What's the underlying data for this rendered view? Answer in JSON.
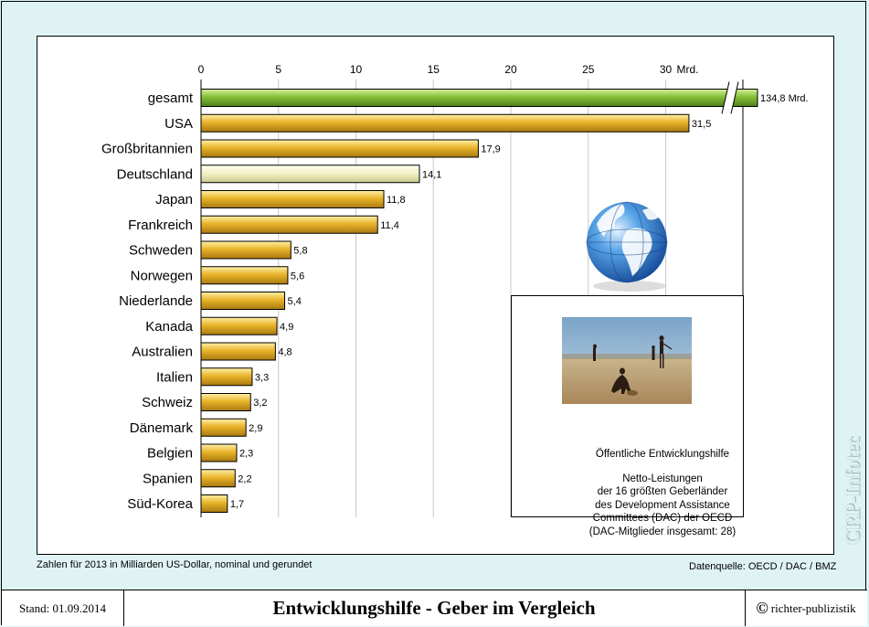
{
  "chart_data": {
    "type": "bar",
    "orientation": "horizontal",
    "categories": [
      "gesamt",
      "USA",
      "Großbritannien",
      "Deutschland",
      "Japan",
      "Frankreich",
      "Schweden",
      "Norwegen",
      "Niederlande",
      "Kanada",
      "Australien",
      "Italien",
      "Schweiz",
      "Dänemark",
      "Belgien",
      "Spanien",
      "Süd-Korea"
    ],
    "values": [
      134.8,
      31.5,
      17.9,
      14.1,
      11.8,
      11.4,
      5.8,
      5.6,
      5.4,
      4.9,
      4.8,
      3.3,
      3.2,
      2.9,
      2.3,
      2.2,
      1.7
    ],
    "value_labels": [
      "134,8 Mrd.",
      "31,5",
      "17,9",
      "14,1",
      "11,8",
      "11,4",
      "5,8",
      "5,6",
      "5,4",
      "4,9",
      "4,8",
      "3,3",
      "3,2",
      "2,9",
      "2,3",
      "2,2",
      "1,7"
    ],
    "x_ticks": [
      0,
      5,
      10,
      15,
      20,
      25,
      30
    ],
    "x_tick_labels": [
      "0",
      "5",
      "10",
      "15",
      "20",
      "25",
      "30"
    ],
    "x_unit_label": "Mrd.",
    "xlim": [
      0,
      35
    ],
    "axis_break": true,
    "grid": "vertical",
    "colors": {
      "total": "#8cc63f",
      "highlight": "#f3f3c8",
      "default": "#e8b82a"
    },
    "highlight_category": "Deutschland",
    "total_category": "gesamt"
  },
  "info_box": {
    "title": "Öffentliche Entwicklungshilfe",
    "lines": [
      "Netto-Leistungen",
      "der 16 größten Geberländer",
      "des Development Assistance",
      "Committees (DAC) der OECD",
      "(DAC-Mitglieder insgesamt: 28)"
    ],
    "photo_icon": "famine-photo",
    "globe_icon": "globe-icon"
  },
  "notes": {
    "units": "Zahlen für 2013 in Milliarden US-Dollar, nominal und gerundet",
    "source": "Datenquelle: OECD / DAC / BMZ"
  },
  "footer": {
    "stand": "Stand: 01.09.2014",
    "headline": "Entwicklungshilfe - Geber im Vergleich",
    "copyright_symbol": "©",
    "copyright": "richter-publizistik"
  },
  "watermark": "CRP-Infotec",
  "colors": {
    "background": "#dff3f4",
    "chart_background": "#ffffff",
    "grid": "#c8c8c8"
  }
}
